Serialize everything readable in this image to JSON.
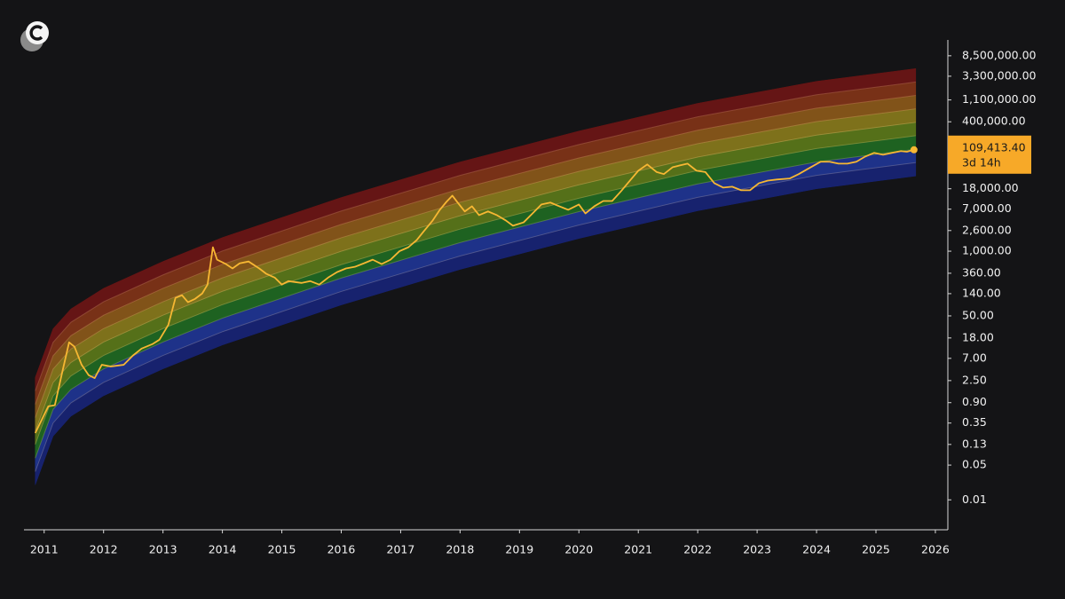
{
  "chart_data": {
    "type": "line",
    "log_y": true,
    "x": [
      2010.85,
      2011.07,
      2011.18,
      2011.3,
      2011.42,
      2011.51,
      2011.63,
      2011.75,
      2011.85,
      2011.97,
      2012.12,
      2012.34,
      2012.49,
      2012.64,
      2012.82,
      2012.94,
      2013.09,
      2013.21,
      2013.32,
      2013.42,
      2013.54,
      2013.66,
      2013.75,
      2013.84,
      2013.91,
      2014.06,
      2014.17,
      2014.29,
      2014.44,
      2014.62,
      2014.74,
      2014.88,
      2015.0,
      2015.11,
      2015.33,
      2015.48,
      2015.63,
      2015.78,
      2015.93,
      2016.08,
      2016.23,
      2016.38,
      2016.53,
      2016.68,
      2016.83,
      2016.98,
      2017.13,
      2017.27,
      2017.39,
      2017.54,
      2017.66,
      2017.77,
      2017.87,
      2017.96,
      2018.08,
      2018.2,
      2018.32,
      2018.47,
      2018.62,
      2018.77,
      2018.89,
      2019.07,
      2019.22,
      2019.37,
      2019.52,
      2019.67,
      2019.82,
      2020.0,
      2020.11,
      2020.26,
      2020.41,
      2020.56,
      2020.71,
      2020.86,
      2021.0,
      2021.15,
      2021.31,
      2021.43,
      2021.58,
      2021.7,
      2021.83,
      2021.98,
      2022.13,
      2022.28,
      2022.43,
      2022.58,
      2022.73,
      2022.88,
      2023.03,
      2023.18,
      2023.33,
      2023.55,
      2023.7,
      2023.85,
      2024.07,
      2024.22,
      2024.37,
      2024.52,
      2024.67,
      2024.82,
      2024.97,
      2025.12,
      2025.27,
      2025.42,
      2025.52,
      2025.64
    ],
    "series": [
      {
        "color": "#f7b733",
        "values": [
          0.22,
          0.76,
          0.8,
          3.5,
          14.7,
          12,
          5.2,
          3.2,
          2.8,
          5.2,
          4.8,
          5.2,
          7.9,
          11,
          13.5,
          16.6,
          33,
          115,
          130,
          94,
          110,
          141,
          213,
          1200,
          675,
          550,
          450,
          570,
          620,
          450,
          350,
          295,
          213,
          250,
          230,
          250,
          213,
          295,
          380,
          450,
          485,
          570,
          675,
          550,
          675,
          1000,
          1200,
          1670,
          2520,
          4150,
          6800,
          9800,
          13100,
          9500,
          6300,
          8000,
          5300,
          6300,
          5300,
          4150,
          3250,
          3800,
          5750,
          8700,
          9500,
          8000,
          6800,
          8700,
          5750,
          8000,
          10200,
          10200,
          16100,
          26300,
          41500,
          55500,
          39000,
          35500,
          49000,
          53000,
          57600,
          41500,
          39000,
          23300,
          19000,
          19800,
          16800,
          16800,
          23300,
          26300,
          27600,
          29000,
          35500,
          45000,
          63000,
          63000,
          57600,
          57600,
          63000,
          80000,
          95000,
          87000,
          95000,
          103000,
          100000,
          109413.4
        ],
        "value_labels": [
          null,
          null,
          null,
          null,
          null,
          null,
          null,
          null,
          null,
          null,
          null,
          null,
          null,
          null,
          null,
          null,
          null,
          null,
          null,
          null,
          null,
          null,
          null,
          null,
          null,
          null,
          null,
          null,
          null,
          null,
          null,
          null,
          null,
          null,
          null,
          null,
          null,
          null,
          null,
          null,
          null,
          null,
          null,
          null,
          null,
          null,
          null,
          null,
          null,
          null,
          null,
          null,
          null,
          null,
          null,
          null,
          null,
          null,
          null,
          null,
          null,
          null,
          null,
          null,
          null,
          null,
          null,
          null,
          null,
          null,
          null,
          null,
          null,
          null,
          null,
          null,
          null,
          null,
          null,
          null,
          null,
          null,
          null,
          null,
          null,
          null,
          null,
          null,
          null,
          null,
          null,
          null,
          null,
          null,
          null,
          null,
          null,
          null,
          null,
          null,
          null,
          null,
          null,
          null,
          null,
          "109,413.40"
        ]
      }
    ],
    "last_value_note": "3d 14h",
    "bands": {
      "x": [
        2010.85,
        2011.15,
        2011.45,
        2012,
        2013,
        2014,
        2016,
        2018,
        2020,
        2022,
        2024,
        2025.67
      ],
      "colors": [
        "#172378",
        "#1f3596",
        "#1f6a22",
        "#5c7a19",
        "#8a7b1c",
        "#8d5a1a",
        "#833417",
        "#6e1515"
      ],
      "boundaries": [
        [
          0.02,
          0.19,
          0.48,
          1.24,
          4.3,
          13,
          83,
          430,
          1800,
          6500,
          18000,
          32500
        ],
        [
          0.037,
          0.35,
          0.89,
          2.3,
          8.0,
          24,
          155,
          800,
          3350,
          12100,
          33500,
          60500
        ],
        [
          0.069,
          0.66,
          1.66,
          4.3,
          14.9,
          45,
          288,
          1490,
          6240,
          22500,
          62400,
          112700
        ],
        [
          0.13,
          1.23,
          3.1,
          8.0,
          27.8,
          84,
          536,
          2780,
          11600,
          42000,
          116000,
          210000
        ],
        [
          0.24,
          2.28,
          5.76,
          14.9,
          51.6,
          156,
          996,
          5160,
          21600,
          78000,
          216000,
          390000
        ],
        [
          0.45,
          4.26,
          10.8,
          27.8,
          96,
          291,
          1860,
          9630,
          40300,
          145600,
          403000,
          728000
        ],
        [
          0.83,
          7.9,
          20,
          51.7,
          179,
          542,
          3460,
          17900,
          75000,
          271000,
          751000,
          1355000
        ],
        [
          1.55,
          14.7,
          37.2,
          96,
          334,
          1010,
          6440,
          33400,
          139700,
          504000,
          1397000,
          2522000
        ],
        [
          2.89,
          27.5,
          69,
          179,
          621,
          1880,
          12000,
          62100,
          260000,
          939000,
          2601000,
          4696000
        ]
      ]
    },
    "xlim": [
      2010.66,
      2026.21
    ],
    "xticks": [
      2011,
      2012,
      2013,
      2014,
      2015,
      2016,
      2017,
      2018,
      2019,
      2020,
      2021,
      2022,
      2023,
      2024,
      2025,
      2026
    ],
    "ylim": [
      0.0025,
      17700000
    ],
    "yticks": [
      {
        "value": 0.01,
        "label": "0.01"
      },
      {
        "value": 0.05,
        "label": "0.05"
      },
      {
        "value": 0.13,
        "label": "0.13"
      },
      {
        "value": 0.35,
        "label": "0.35"
      },
      {
        "value": 0.9,
        "label": "0.90"
      },
      {
        "value": 2.5,
        "label": "2.50"
      },
      {
        "value": 7,
        "label": "7.00"
      },
      {
        "value": 18,
        "label": "18.00"
      },
      {
        "value": 50,
        "label": "50.00"
      },
      {
        "value": 140,
        "label": "140.00"
      },
      {
        "value": 360,
        "label": "360.00"
      },
      {
        "value": 1000,
        "label": "1,000.00"
      },
      {
        "value": 2600,
        "label": "2,600.00"
      },
      {
        "value": 7000,
        "label": "7,000.00"
      },
      {
        "value": 18000,
        "label": "18,000.00"
      },
      {
        "value": 400000,
        "label": "400,000.00"
      },
      {
        "value": 1100000,
        "label": "1,100,000.00"
      },
      {
        "value": 3300000,
        "label": "3,300,000.00"
      },
      {
        "value": 8500000,
        "label": "8,500,000.00"
      }
    ],
    "grid": false
  }
}
